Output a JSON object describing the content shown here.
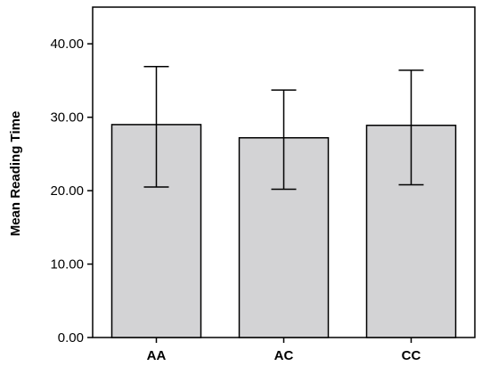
{
  "chart_data": {
    "type": "bar",
    "title": "",
    "xlabel": "",
    "ylabel": "Mean Reading Time",
    "categories": [
      "AA",
      "AC",
      "CC"
    ],
    "values": [
      29.0,
      27.2,
      28.9
    ],
    "error_low": [
      20.5,
      20.2,
      20.8
    ],
    "error_high": [
      36.9,
      33.7,
      36.4
    ],
    "ylim": [
      0,
      45
    ],
    "yticks": [
      0,
      10,
      20,
      30,
      40
    ],
    "ytick_labels": [
      "0.00",
      "10.00",
      "20.00",
      "30.00",
      "40.00"
    ],
    "grid": false,
    "legend": "none",
    "bar_color": "#d3d3d5",
    "edge_color": "#000000"
  }
}
